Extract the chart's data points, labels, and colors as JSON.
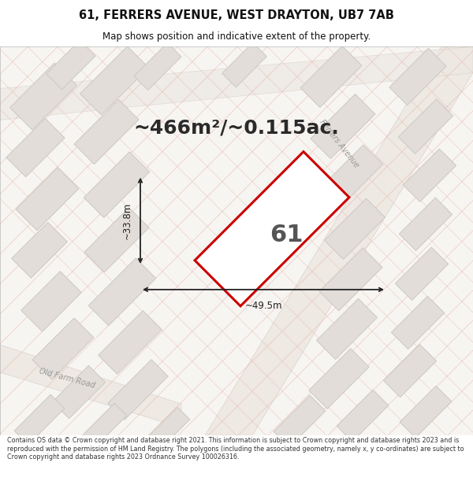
{
  "title_line1": "61, FERRERS AVENUE, WEST DRAYTON, UB7 7AB",
  "title_line2": "Map shows position and indicative extent of the property.",
  "area_text": "~466m²/~0.115ac.",
  "label_number": "61",
  "dim_width": "~49.5m",
  "dim_height": "~33.8m",
  "footer_text": "Contains OS data © Crown copyright and database right 2021. This information is subject to Crown copyright and database rights 2023 and is reproduced with the permission of HM Land Registry. The polygons (including the associated geometry, namely x, y co-ordinates) are subject to Crown copyright and database rights 2023 Ordnance Survey 100026316.",
  "map_bg": "#f7f5f2",
  "building_color": "#e2ddd8",
  "building_edge": "#ccc8c2",
  "plot_fill": "#ffffff",
  "plot_edge": "#cc0000",
  "plot_edge_width": 2.2,
  "dim_color": "#222222",
  "street_label_color": "#999999",
  "line_color": "#e8b8b0",
  "text_color": "#111111",
  "footer_color": "#333333",
  "title_fontsize": 10.5,
  "subtitle_fontsize": 8.5,
  "area_fontsize": 18,
  "label_fontsize": 22,
  "dim_fontsize": 8.5
}
